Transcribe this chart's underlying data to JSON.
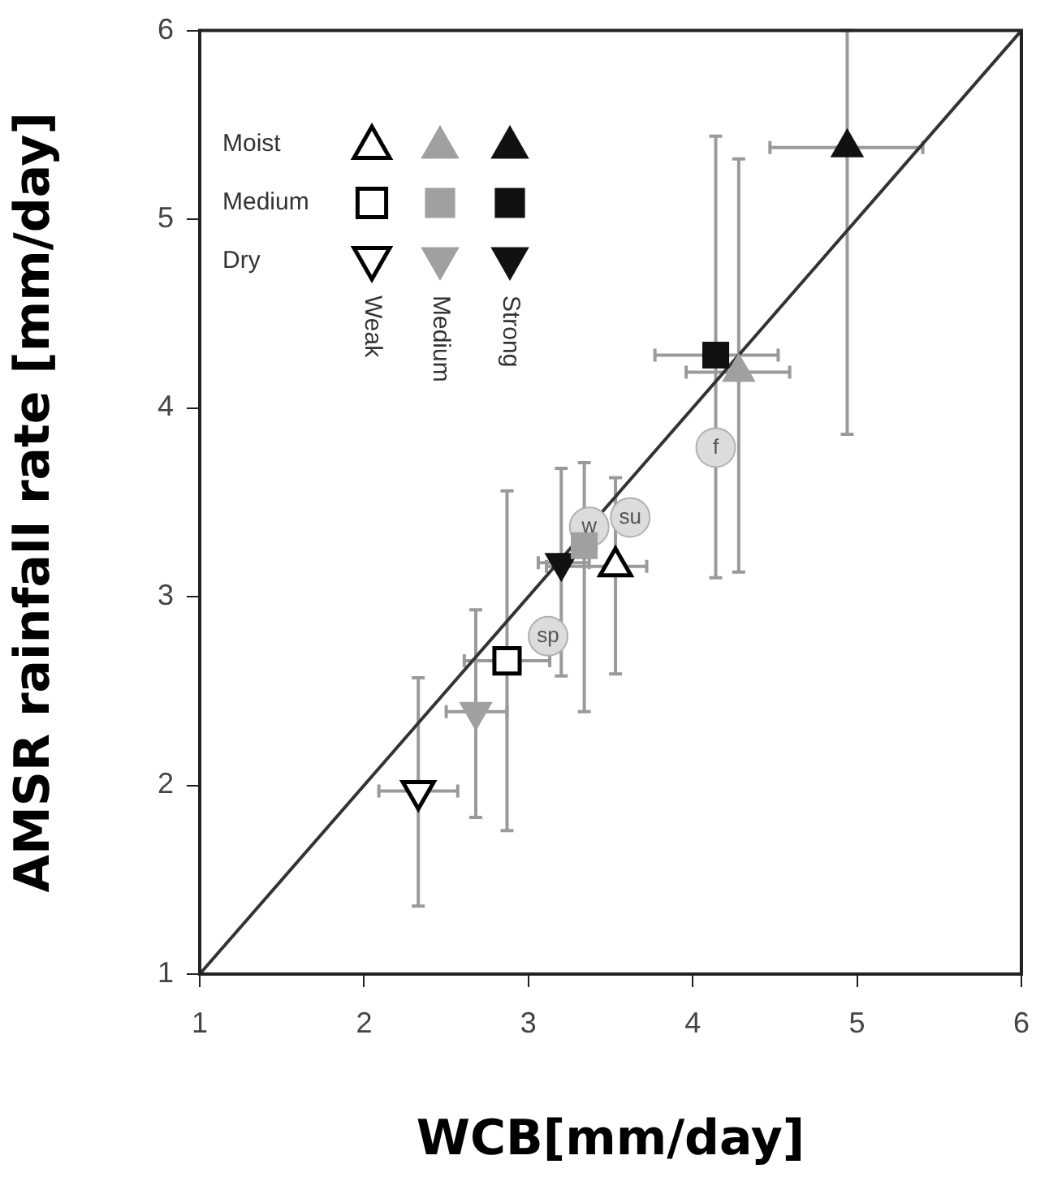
{
  "chart_data": {
    "type": "scatter",
    "xlabel": "WCB[mm/day]",
    "ylabel": "AMSR rainfall rate [mm/day]",
    "xlim": [
      1,
      6
    ],
    "ylim": [
      1,
      6
    ],
    "xticks": [
      1,
      2,
      3,
      4,
      5,
      6
    ],
    "yticks": [
      1,
      2,
      3,
      4,
      5,
      6
    ],
    "grid": false,
    "legend": false,
    "annotations": [
      "Moist",
      "Medium",
      "Dry",
      "Weak",
      "Medium",
      "Strong"
    ],
    "series": [
      {
        "color": "#ffffff",
        "marker": "triangle",
        "x": [
          3.53
        ],
        "values": [
          3.16
        ],
        "errors": [
          [
            2.59,
            3.63
          ]
        ],
        "xerrors": [
          [
            3.11,
            3.72
          ]
        ]
      },
      {
        "color": "#a0a0a0",
        "marker": "triangle",
        "x": [
          4.28
        ],
        "values": [
          4.19
        ],
        "errors": [
          [
            3.13,
            5.32
          ]
        ],
        "xerrors": [
          [
            3.96,
            4.59
          ]
        ]
      },
      {
        "color": "#111111",
        "marker": "triangle",
        "x": [
          4.94
        ],
        "values": [
          5.38
        ],
        "errors": [
          [
            3.86,
            6.0
          ]
        ],
        "xerrors": [
          [
            4.47,
            5.4
          ]
        ]
      },
      {
        "color": "#ffffff",
        "marker": "square",
        "x": [
          2.87
        ],
        "values": [
          2.66
        ],
        "errors": [
          [
            1.76,
            3.56
          ]
        ],
        "xerrors": [
          [
            2.61,
            3.13
          ]
        ]
      },
      {
        "color": "#a0a0a0",
        "marker": "square",
        "x": [
          3.34
        ],
        "values": [
          3.27
        ],
        "errors": [
          [
            2.39,
            3.71
          ]
        ],
        "xerrors": [
          null
        ]
      },
      {
        "color": "#111111",
        "marker": "square",
        "x": [
          4.14
        ],
        "values": [
          4.28
        ],
        "errors": [
          [
            3.1,
            5.44
          ]
        ],
        "xerrors": [
          [
            3.77,
            4.52
          ]
        ]
      },
      {
        "color": "#ffffff",
        "marker": "triangle-down",
        "x": [
          2.33
        ],
        "values": [
          1.97
        ],
        "errors": [
          [
            1.36,
            2.57
          ]
        ],
        "xerrors": [
          [
            2.09,
            2.57
          ]
        ]
      },
      {
        "color": "#a0a0a0",
        "marker": "triangle-down",
        "x": [
          2.68
        ],
        "values": [
          2.39
        ],
        "errors": [
          [
            1.83,
            2.93
          ]
        ],
        "xerrors": [
          [
            2.5,
            2.87
          ]
        ]
      },
      {
        "color": "#111111",
        "marker": "triangle-down",
        "x": [
          3.2
        ],
        "values": [
          3.18
        ],
        "errors": [
          [
            2.58,
            3.68
          ]
        ],
        "xerrors": [
          [
            3.06,
            3.37
          ]
        ]
      },
      {
        "color": "#dcdcdc",
        "marker": "circle",
        "x": [
          3.12,
          3.37,
          3.62,
          4.14
        ],
        "values": [
          2.79,
          3.37,
          3.42,
          3.79
        ],
        "value_labels": [
          "sp",
          "w",
          "su",
          "f"
        ]
      },
      {
        "type": "line",
        "color": "#333333",
        "marker": "none",
        "x": [
          1,
          6
        ],
        "values": [
          1,
          6
        ]
      }
    ]
  }
}
